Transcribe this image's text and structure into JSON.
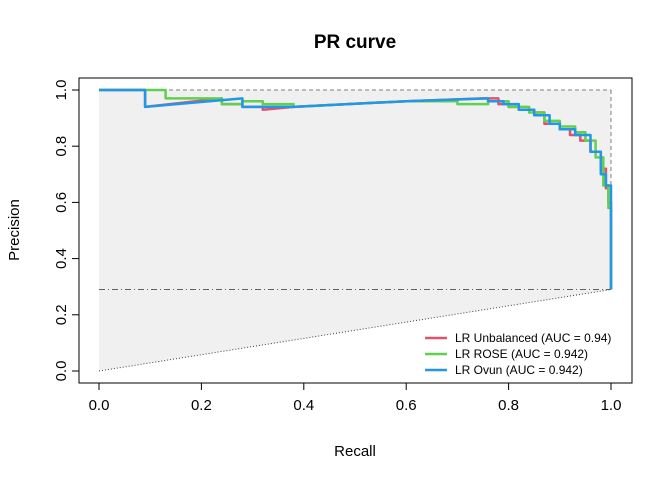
{
  "chart_data": {
    "type": "line",
    "title": "PR curve",
    "xlabel": "Recall",
    "ylabel": "Precision",
    "xlim": [
      0,
      1
    ],
    "ylim": [
      0,
      1
    ],
    "xticks": [
      "0.0",
      "0.2",
      "0.4",
      "0.6",
      "0.8",
      "1.0"
    ],
    "yticks": [
      "0.0",
      "0.2",
      "0.4",
      "0.6",
      "0.8",
      "1.0"
    ],
    "baseline_precision": 0.29,
    "grid": false,
    "legend_position": "bottom-right",
    "series": [
      {
        "name": "LR Unbalanced (AUC = 0.94)",
        "color": "#DF536B",
        "x": [
          0.0,
          0.09,
          0.09,
          0.24,
          0.24,
          0.28,
          0.28,
          0.32,
          0.32,
          0.38,
          0.38,
          0.6,
          0.75,
          0.78,
          0.78,
          0.8,
          0.8,
          0.82,
          0.82,
          0.85,
          0.85,
          0.87,
          0.87,
          0.9,
          0.9,
          0.92,
          0.92,
          0.94,
          0.94,
          0.96,
          0.96,
          0.98,
          0.98,
          0.99,
          0.99,
          0.995,
          0.995,
          1.0,
          1.0
        ],
        "y": [
          1.0,
          1.0,
          0.94,
          0.97,
          0.95,
          0.95,
          0.94,
          0.94,
          0.93,
          0.94,
          0.94,
          0.96,
          0.97,
          0.97,
          0.95,
          0.95,
          0.94,
          0.94,
          0.93,
          0.93,
          0.92,
          0.92,
          0.88,
          0.88,
          0.86,
          0.86,
          0.84,
          0.84,
          0.82,
          0.82,
          0.78,
          0.78,
          0.72,
          0.72,
          0.65,
          0.65,
          0.6,
          0.6,
          0.29
        ]
      },
      {
        "name": "LR ROSE (AUC = 0.942)",
        "color": "#61D04F",
        "x": [
          0.0,
          0.09,
          0.13,
          0.13,
          0.24,
          0.24,
          0.28,
          0.28,
          0.32,
          0.32,
          0.38,
          0.38,
          0.6,
          0.7,
          0.7,
          0.76,
          0.76,
          0.8,
          0.8,
          0.84,
          0.84,
          0.87,
          0.87,
          0.9,
          0.9,
          0.93,
          0.93,
          0.95,
          0.95,
          0.97,
          0.97,
          0.985,
          0.985,
          0.995,
          0.995,
          1.0,
          1.0
        ],
        "y": [
          1.0,
          1.0,
          1.0,
          0.97,
          0.97,
          0.95,
          0.95,
          0.96,
          0.96,
          0.95,
          0.95,
          0.94,
          0.96,
          0.96,
          0.95,
          0.95,
          0.96,
          0.96,
          0.94,
          0.94,
          0.92,
          0.92,
          0.89,
          0.89,
          0.87,
          0.87,
          0.85,
          0.85,
          0.82,
          0.82,
          0.76,
          0.76,
          0.66,
          0.66,
          0.58,
          0.58,
          0.29
        ]
      },
      {
        "name": "LR Ovun (AUC = 0.942)",
        "color": "#2297E6",
        "x": [
          0.0,
          0.09,
          0.09,
          0.28,
          0.28,
          0.38,
          0.6,
          0.76,
          0.76,
          0.79,
          0.79,
          0.82,
          0.82,
          0.85,
          0.85,
          0.88,
          0.88,
          0.9,
          0.9,
          0.93,
          0.93,
          0.96,
          0.96,
          0.98,
          0.98,
          0.99,
          0.99,
          1.0,
          1.0
        ],
        "y": [
          1.0,
          1.0,
          0.94,
          0.97,
          0.94,
          0.94,
          0.96,
          0.97,
          0.96,
          0.96,
          0.95,
          0.95,
          0.93,
          0.93,
          0.91,
          0.91,
          0.88,
          0.88,
          0.86,
          0.86,
          0.84,
          0.84,
          0.78,
          0.78,
          0.7,
          0.7,
          0.66,
          0.66,
          0.29
        ]
      }
    ]
  }
}
